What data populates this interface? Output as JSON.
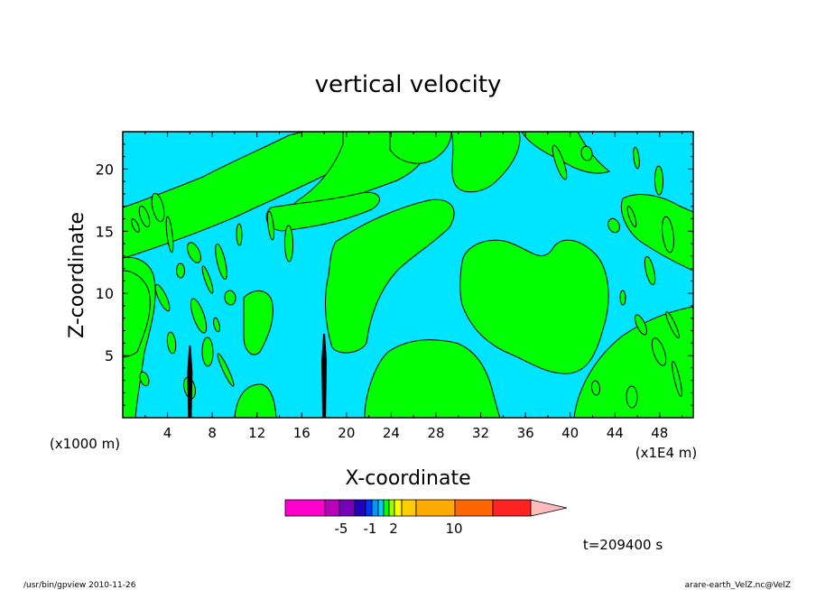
{
  "chart_data": {
    "type": "filled contour",
    "title": "vertical velocity",
    "xlabel": "X-coordinate",
    "ylabel": "Z-coordinate",
    "x_unit_label": "(x1000 m)",
    "x_scale_label": "(x1E4 m)",
    "xlim": [
      0,
      51
    ],
    "ylim": [
      0,
      23
    ],
    "x_ticks": [
      "4",
      "8",
      "12",
      "16",
      "20",
      "24",
      "28",
      "32",
      "36",
      "40",
      "44",
      "48"
    ],
    "y_ticks": [
      "5",
      "10",
      "15",
      "20"
    ],
    "colors": {
      "background_field": "#00e5ff",
      "positive_field": "#00ff00",
      "strong_updraft": "#000000"
    },
    "colorbar": {
      "colors": [
        "#ff00cc",
        "#bb00bb",
        "#7700bb",
        "#2200bb",
        "#0033ff",
        "#0099ff",
        "#00ccff",
        "#00ff00",
        "#99ff00",
        "#ffff00",
        "#ffcc00",
        "#ffaa00",
        "#ff6600",
        "#ff2222",
        "#ff7777",
        "#ffbbbb"
      ],
      "tick_labels": [
        "-5",
        "-1",
        "2",
        "10"
      ],
      "extend": "max"
    },
    "time_label": "t=209400 s"
  },
  "footer": {
    "left": "/usr/bin/gpview   2010-11-26",
    "right": "arare-earth_VelZ.nc@VelZ"
  }
}
